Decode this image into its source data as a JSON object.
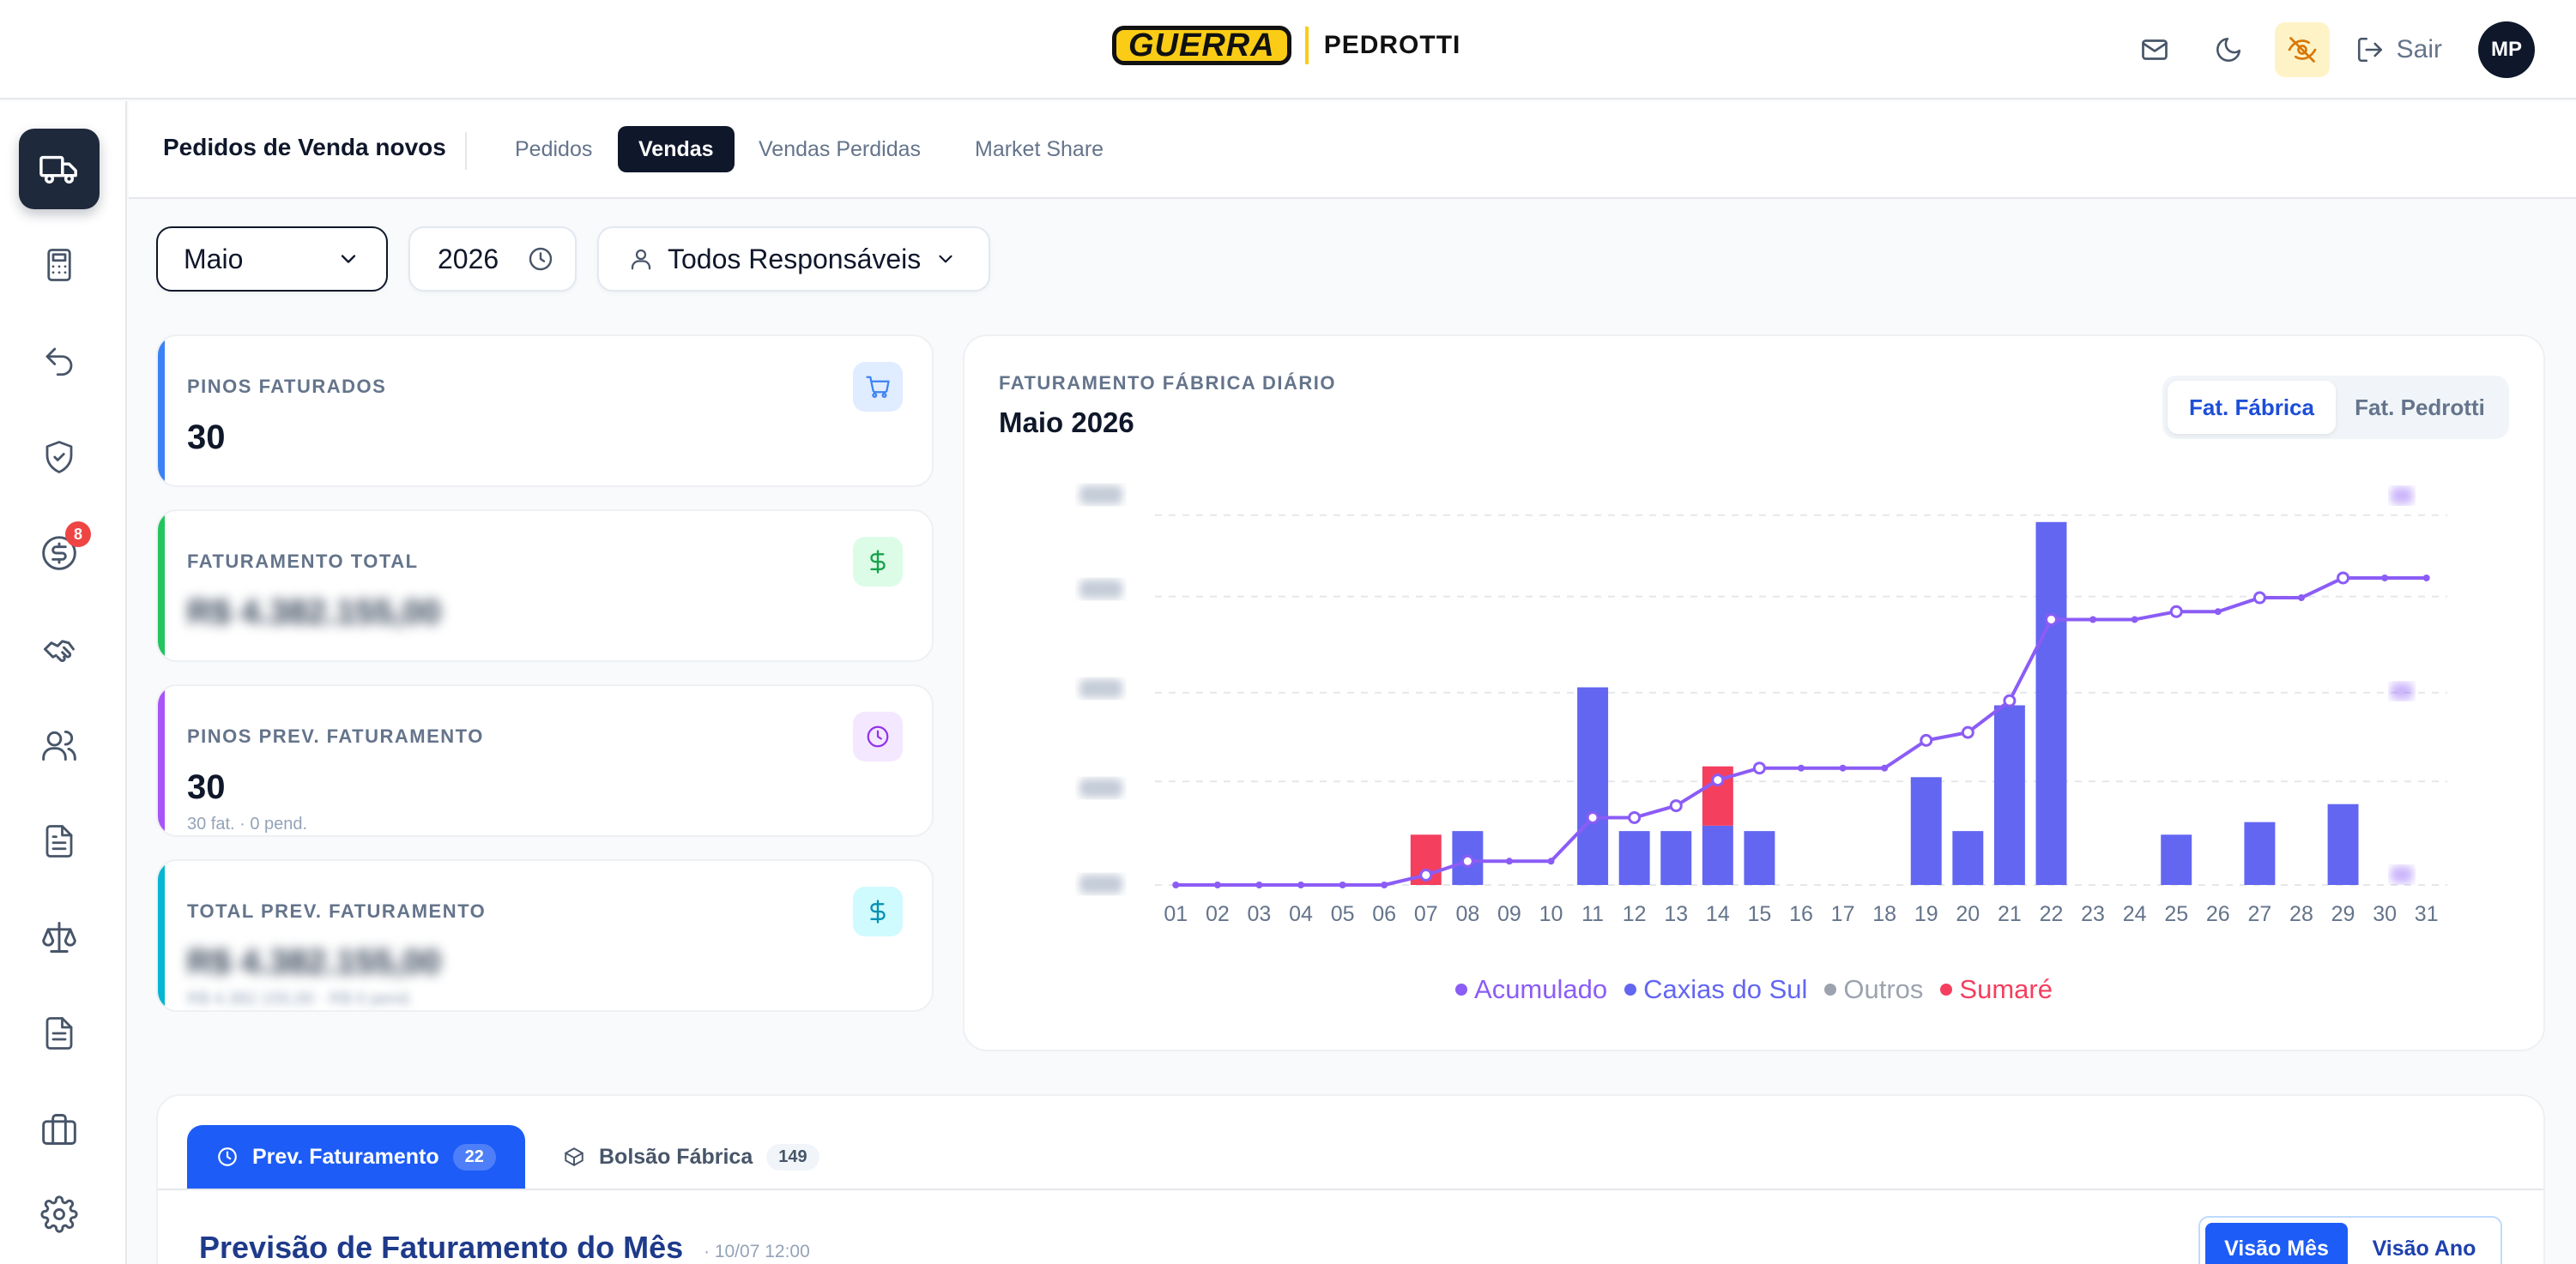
{
  "header": {
    "logo_left": "GUERRA",
    "logo_right": "PEDROTTI",
    "actions": [
      {
        "icon": "mail-icon"
      },
      {
        "icon": "moon-icon"
      },
      {
        "icon": "eye-off-icon",
        "active": true
      }
    ],
    "logout_label": "Sair",
    "avatar_initials": "MP"
  },
  "sidebar": {
    "items": [
      {
        "icon": "truck-icon",
        "active": true
      },
      {
        "icon": "calculator-icon"
      },
      {
        "icon": "undo-icon"
      },
      {
        "icon": "shield-check-icon"
      },
      {
        "icon": "dollar-circle-icon",
        "badge": "8"
      },
      {
        "icon": "handshake-icon"
      },
      {
        "icon": "users-icon"
      },
      {
        "icon": "file-text-icon"
      },
      {
        "icon": "scale-icon"
      },
      {
        "icon": "file-list-icon"
      },
      {
        "icon": "briefcase-icon"
      },
      {
        "icon": "gear-icon"
      }
    ]
  },
  "subnav": {
    "title": "Pedidos de Venda novos",
    "tabs": [
      {
        "label": "Pedidos"
      },
      {
        "label": "Vendas",
        "active": true
      },
      {
        "label": "Vendas Perdidas"
      },
      {
        "label": "Market Share"
      }
    ]
  },
  "filters": {
    "month": "Maio",
    "year": "2026",
    "responsible": "Todos Responsáveis"
  },
  "kpis": [
    {
      "label": "PINOS FATURADOS",
      "value": "30",
      "color": "#3b82f6",
      "icon": "cart-icon",
      "icon_bg": "#e0ecff",
      "icon_color": "#3b82f6"
    },
    {
      "label": "FATURAMENTO TOTAL",
      "value": "R$ 4.382.155,00",
      "blurred": true,
      "color": "#22c55e",
      "icon": "dollar-icon",
      "icon_bg": "#dcfce7",
      "icon_color": "#16a34a"
    },
    {
      "label": "PINOS PREV. FATURAMENTO",
      "value": "30",
      "sub": "30 fat. · 0 pend.",
      "color": "#a855f7",
      "icon": "clock-icon",
      "icon_bg": "#f3e8ff",
      "icon_color": "#9333ea"
    },
    {
      "label": "TOTAL PREV. FATURAMENTO",
      "value": "R$ 4.382.155,00",
      "blurred": true,
      "sub": "R$ 4.382.155,00 · R$ 0 pend.",
      "sub_blurred": true,
      "color": "#06b6d4",
      "icon": "dollar-icon",
      "icon_bg": "#cffafe",
      "icon_color": "#0891b2"
    }
  ],
  "chart_card": {
    "label": "FATURAMENTO FÁBRICA DIÁRIO",
    "title": "Maio 2026",
    "toggle": [
      {
        "label": "Fat. Fábrica",
        "active": true
      },
      {
        "label": "Fat. Pedrotti"
      }
    ]
  },
  "chart_data": {
    "type": "bar",
    "categories": [
      "01",
      "02",
      "03",
      "04",
      "05",
      "06",
      "07",
      "08",
      "09",
      "10",
      "11",
      "12",
      "13",
      "14",
      "15",
      "16",
      "17",
      "18",
      "19",
      "20",
      "21",
      "22",
      "23",
      "24",
      "25",
      "26",
      "27",
      "28",
      "29",
      "30",
      "31"
    ],
    "y_axis_blurred": true,
    "grid": true,
    "legend_position": "bottom",
    "series": [
      {
        "name": "Caxias do Sul",
        "type": "bar",
        "color": "#6366f1",
        "values": [
          0,
          0,
          0,
          0,
          0,
          0,
          0,
          30,
          0,
          0,
          110,
          30,
          30,
          33,
          30,
          0,
          0,
          0,
          60,
          30,
          100,
          202,
          0,
          0,
          28,
          0,
          35,
          0,
          45,
          0,
          0
        ]
      },
      {
        "name": "Sumaré",
        "type": "bar",
        "color": "#f43f5e",
        "values": [
          0,
          0,
          0,
          0,
          0,
          0,
          28,
          0,
          0,
          0,
          0,
          0,
          0,
          33,
          0,
          0,
          0,
          0,
          0,
          0,
          0,
          0,
          0,
          0,
          0,
          0,
          0,
          0,
          0,
          0,
          0
        ]
      },
      {
        "name": "Outros",
        "type": "bar",
        "color": "#9ca3af",
        "values": [
          0,
          0,
          0,
          0,
          0,
          0,
          0,
          0,
          0,
          0,
          0,
          0,
          0,
          0,
          0,
          0,
          0,
          0,
          0,
          0,
          0,
          0,
          0,
          0,
          0,
          0,
          0,
          0,
          0,
          0,
          0
        ]
      },
      {
        "name": "Acumulado",
        "type": "line",
        "color": "#8b5cf6",
        "values": [
          0,
          0,
          0,
          0,
          0,
          0,
          5,
          12,
          12,
          12,
          34,
          34,
          40,
          53,
          59,
          59,
          59,
          59,
          73,
          77,
          93,
          134,
          134,
          134,
          138,
          138,
          145,
          145,
          155,
          155,
          155
        ],
        "ylim": [
          0,
          200
        ]
      }
    ],
    "ylim": [
      0,
      210
    ]
  },
  "bottom": {
    "tabs": [
      {
        "label": "Prev. Faturamento",
        "count": "22",
        "icon": "clock-icon",
        "active": true
      },
      {
        "label": "Bolsão Fábrica",
        "count": "149",
        "icon": "box-icon"
      }
    ],
    "section_title": "Previsão de Faturamento do Mês",
    "section_time": "· 10/07 12:00",
    "view_toggle": [
      {
        "label": "Visão Mês",
        "active": true
      },
      {
        "label": "Visão Ano"
      }
    ]
  }
}
